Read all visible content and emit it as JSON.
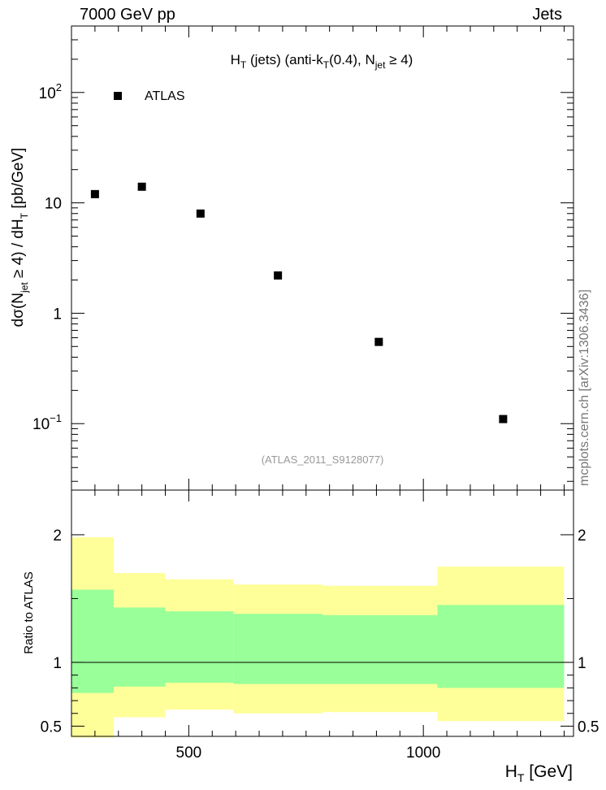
{
  "header": {
    "left": "7000 GeV pp",
    "right": "Jets"
  },
  "side_label": "mcplots.cern.ch [arXiv:1306.3436]",
  "chart_data": [
    {
      "type": "scatter",
      "title": {
        "main": "H",
        "sub_t": "T",
        "mid": " (jets) (anti-k",
        "sub_t2": "T",
        "mid2": "(0.4), N",
        "sub_jet": "jet",
        "tail": " ≥ 4)"
      },
      "ylabel": {
        "p1": "dσ(N",
        "sub_jet": "jet",
        "p2": " ≥ 4) / dH",
        "sub_t": "T",
        "p3": " [pb/GeV]"
      },
      "yscale": "log",
      "ylim": [
        0.025,
        400
      ],
      "xlim": [
        250,
        1320
      ],
      "yticks": [
        {
          "value": 100,
          "base": "10",
          "exp": "2"
        },
        {
          "value": 10,
          "base": "10",
          "exp": ""
        },
        {
          "value": 1,
          "base": "1",
          "exp": ""
        },
        {
          "value": 0.1,
          "base": "10",
          "exp": "−1"
        }
      ],
      "series": [
        {
          "name": "ATLAS",
          "marker": "square",
          "color": "#000000",
          "x": [
            300,
            400,
            525,
            690,
            905,
            1170
          ],
          "y": [
            12,
            14,
            8,
            2.2,
            0.55,
            0.11
          ]
        }
      ],
      "legend_position": "top-left",
      "annotation": "(ATLAS_2011_S9128077)"
    },
    {
      "type": "area",
      "ylabel": "Ratio to ATLAS",
      "ylim": [
        0.42,
        2.35
      ],
      "xlim": [
        250,
        1320
      ],
      "xlabel": {
        "main": "H",
        "sub_t": "T",
        "tail": " [GeV]"
      },
      "xticks": [
        500,
        1000
      ],
      "yticks": [
        0.5,
        1,
        2
      ],
      "reference_line": 1,
      "bins": [
        250,
        340,
        450,
        595,
        785,
        1030,
        1300
      ],
      "band_outer": {
        "color": "#ffff99",
        "lo": [
          0.41,
          0.57,
          0.63,
          0.6,
          0.61,
          0.54
        ],
        "hi": [
          1.98,
          1.7,
          1.65,
          1.61,
          1.6,
          1.75
        ]
      },
      "band_inner": {
        "color": "#99ff99",
        "lo": [
          0.76,
          0.81,
          0.84,
          0.83,
          0.83,
          0.8
        ],
        "hi": [
          1.57,
          1.43,
          1.4,
          1.38,
          1.37,
          1.45
        ]
      }
    }
  ]
}
